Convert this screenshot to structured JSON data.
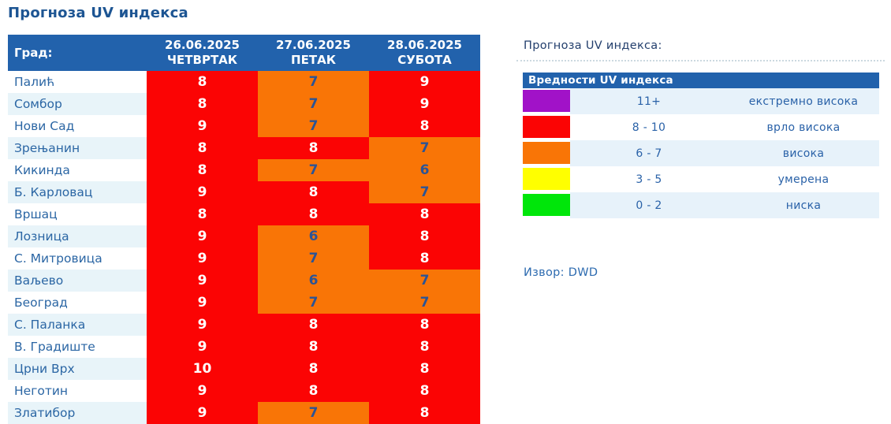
{
  "page_title": "Прогноза UV индекса",
  "colors": {
    "header_bg": "#2262ac",
    "title_text": "#1d5593",
    "red": "#fb0404",
    "orange": "#f97506",
    "yellow": "#ffff00",
    "green": "#00e60a",
    "purple": "#a112c8",
    "alt_row_bg": "#e8f4f9",
    "value_text_dark": "#2b5496",
    "value_text_light": "#ffffff"
  },
  "forecast_table": {
    "city_header": "Град:",
    "day_headers": [
      {
        "date": "26.06.2025",
        "day": "ЧЕТВРТАК"
      },
      {
        "date": "27.06.2025",
        "day": "ПЕТАК"
      },
      {
        "date": "28.06.2025",
        "day": "СУБОТА"
      }
    ],
    "rows": [
      {
        "city": "Палић",
        "values": [
          8,
          7,
          9
        ]
      },
      {
        "city": "Сомбор",
        "values": [
          8,
          7,
          9
        ]
      },
      {
        "city": "Нови Сад",
        "values": [
          9,
          7,
          8
        ]
      },
      {
        "city": "Зрењанин",
        "values": [
          8,
          8,
          7
        ]
      },
      {
        "city": "Кикинда",
        "values": [
          8,
          7,
          6
        ]
      },
      {
        "city": "Б. Карловац",
        "values": [
          9,
          8,
          7
        ]
      },
      {
        "city": "Вршац",
        "values": [
          8,
          8,
          8
        ]
      },
      {
        "city": "Лозница",
        "values": [
          9,
          6,
          8
        ]
      },
      {
        "city": "С. Митровица",
        "values": [
          9,
          7,
          8
        ]
      },
      {
        "city": "Ваљево",
        "values": [
          9,
          6,
          7
        ]
      },
      {
        "city": "Београд",
        "values": [
          9,
          7,
          7
        ]
      },
      {
        "city": "С. Паланка",
        "values": [
          9,
          8,
          8
        ]
      },
      {
        "city": "В. Градиште",
        "values": [
          9,
          8,
          8
        ]
      },
      {
        "city": "Црни Врх",
        "values": [
          10,
          8,
          8
        ]
      },
      {
        "city": "Неготин",
        "values": [
          9,
          8,
          8
        ]
      },
      {
        "city": "Златибор",
        "values": [
          9,
          7,
          8
        ]
      }
    ]
  },
  "legend": {
    "title": "Прогноза UV индекса:",
    "table_header": "Вредности UV индекса",
    "rows": [
      {
        "color": "#a112c8",
        "range": "11+",
        "label": "екстремно висока"
      },
      {
        "color": "#fb0404",
        "range": "8 - 10",
        "label": "врло висока"
      },
      {
        "color": "#f97506",
        "range": "6 - 7",
        "label": "висока"
      },
      {
        "color": "#ffff00",
        "range": "3 - 5",
        "label": "умерена"
      },
      {
        "color": "#00e60a",
        "range": "0 - 2",
        "label": "ниска"
      }
    ]
  },
  "source": "Извор: DWD"
}
